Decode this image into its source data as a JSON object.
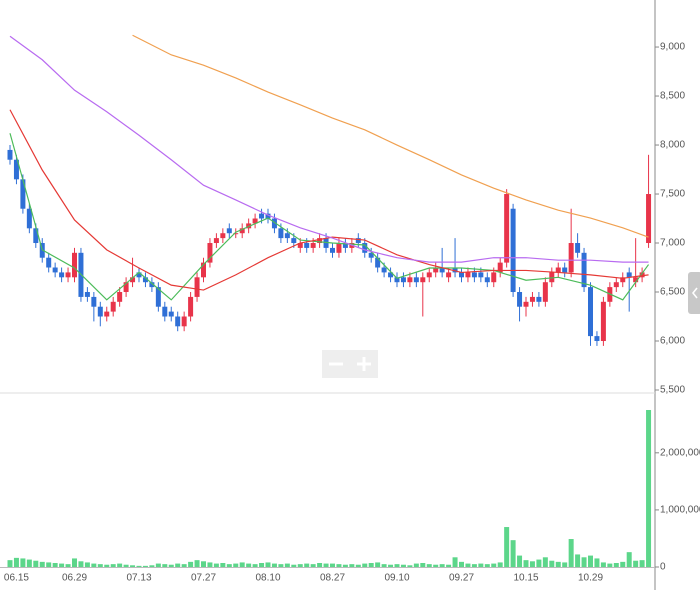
{
  "chart_data": {
    "type": "candlestick",
    "categories": [
      null,
      "06.15",
      null,
      null,
      null,
      null,
      null,
      null,
      null,
      null,
      "06.29",
      null,
      null,
      null,
      null,
      null,
      null,
      null,
      null,
      null,
      "07.13",
      null,
      null,
      null,
      null,
      null,
      null,
      null,
      null,
      null,
      "07.27",
      null,
      null,
      null,
      null,
      null,
      null,
      null,
      null,
      null,
      "08.10",
      null,
      null,
      null,
      null,
      null,
      null,
      null,
      null,
      null,
      "08.27",
      null,
      null,
      null,
      null,
      null,
      null,
      null,
      null,
      null,
      "09.10",
      null,
      null,
      null,
      null,
      null,
      null,
      null,
      null,
      null,
      "09.27",
      null,
      null,
      null,
      null,
      null,
      null,
      null,
      null,
      null,
      "10.15",
      null,
      null,
      null,
      null,
      null,
      null,
      null,
      null,
      null,
      "10.29",
      null,
      null,
      null,
      null,
      null,
      null,
      null,
      null,
      null
    ],
    "open": [
      7950,
      7850,
      7650,
      7350,
      7150,
      7000,
      6850,
      6750,
      6700,
      6650,
      6650,
      6900,
      6500,
      6450,
      6350,
      6250,
      6300,
      6400,
      6500,
      6600,
      6700,
      6650,
      6600,
      6550,
      6350,
      6300,
      6250,
      6150,
      6250,
      6450,
      6650,
      6800,
      7000,
      7050,
      7150,
      7100,
      7100,
      7150,
      7200,
      7300,
      7300,
      7250,
      7150,
      7100,
      7050,
      6950,
      7000,
      6950,
      7000,
      7050,
      6950,
      6900,
      7000,
      6950,
      7050,
      7000,
      6900,
      6850,
      6750,
      6700,
      6650,
      6650,
      6600,
      6650,
      6600,
      6650,
      6700,
      6750,
      6650,
      6750,
      6700,
      6650,
      6700,
      6700,
      6650,
      6600,
      6700,
      6800,
      7350,
      6500,
      6350,
      6400,
      6450,
      6400,
      6600,
      6700,
      6750,
      6700,
      7000,
      6900,
      6550,
      6050,
      6000,
      6400,
      6550,
      6600,
      6700,
      6600,
      6650,
      7000
    ],
    "high": [
      8000,
      7900,
      7700,
      7400,
      7200,
      7050,
      6900,
      6800,
      6750,
      6750,
      6950,
      6950,
      6550,
      6500,
      6400,
      6350,
      6450,
      6550,
      6650,
      6850,
      6750,
      6700,
      6650,
      6600,
      6400,
      6350,
      6300,
      6300,
      6500,
      6700,
      6850,
      7050,
      7100,
      7150,
      7200,
      7150,
      7200,
      7250,
      7300,
      7350,
      7350,
      7300,
      7200,
      7150,
      7100,
      7050,
      7050,
      7050,
      7100,
      7100,
      7000,
      7050,
      7050,
      7050,
      7100,
      7050,
      6950,
      6900,
      6800,
      6750,
      6700,
      6700,
      6700,
      6700,
      6700,
      6750,
      6800,
      6950,
      6750,
      7050,
      6750,
      6750,
      6750,
      6750,
      6700,
      6750,
      6850,
      7550,
      7400,
      6550,
      6450,
      6500,
      6500,
      6650,
      6750,
      6800,
      6800,
      7350,
      7100,
      6950,
      6600,
      6100,
      6450,
      6600,
      6650,
      6700,
      6750,
      7050,
      6750,
      7900
    ],
    "low": [
      7800,
      7600,
      7300,
      7100,
      6950,
      6800,
      6700,
      6650,
      6600,
      6600,
      6600,
      6400,
      6400,
      6200,
      6150,
      6200,
      6250,
      6350,
      6450,
      6550,
      6600,
      6550,
      6500,
      6300,
      6200,
      6200,
      6100,
      6100,
      6200,
      6400,
      6600,
      6750,
      6950,
      7000,
      7050,
      7050,
      7050,
      7100,
      7150,
      7200,
      7200,
      7100,
      7000,
      7000,
      6950,
      6900,
      6900,
      6900,
      6950,
      6900,
      6850,
      6850,
      6900,
      6900,
      6950,
      6850,
      6800,
      6700,
      6650,
      6600,
      6550,
      6550,
      6550,
      6550,
      6250,
      6600,
      6650,
      6650,
      6600,
      6650,
      6600,
      6600,
      6600,
      6600,
      6550,
      6550,
      6650,
      6750,
      6450,
      6200,
      6250,
      6350,
      6350,
      6350,
      6550,
      6650,
      6650,
      6650,
      6850,
      6500,
      5950,
      5950,
      5950,
      6350,
      6500,
      6550,
      6300,
      6550,
      6600,
      6950
    ],
    "close": [
      7850,
      7650,
      7350,
      7150,
      7000,
      6850,
      6750,
      6700,
      6650,
      6700,
      6900,
      6450,
      6450,
      6350,
      6250,
      6300,
      6400,
      6500,
      6600,
      6650,
      6650,
      6600,
      6550,
      6350,
      6250,
      6250,
      6150,
      6250,
      6450,
      6650,
      6800,
      7000,
      7050,
      7100,
      7100,
      7100,
      7150,
      7200,
      7250,
      7250,
      7250,
      7150,
      7050,
      7050,
      7000,
      7000,
      6950,
      7000,
      7050,
      6950,
      6900,
      7000,
      6950,
      7000,
      7000,
      6900,
      6850,
      6750,
      6700,
      6650,
      6600,
      6600,
      6650,
      6600,
      6650,
      6700,
      6750,
      6700,
      6700,
      6700,
      6650,
      6700,
      6650,
      6650,
      6600,
      6700,
      6800,
      7500,
      6500,
      6350,
      6400,
      6450,
      6400,
      6600,
      6700,
      6750,
      6700,
      7000,
      6900,
      6550,
      6050,
      6000,
      6400,
      6550,
      6600,
      6650,
      6650,
      6650,
      6700,
      7500
    ],
    "volume": [
      120000,
      160000,
      150000,
      130000,
      110000,
      90000,
      80000,
      70000,
      60000,
      50000,
      150000,
      100000,
      80000,
      60000,
      50000,
      40000,
      50000,
      60000,
      40000,
      30000,
      20000,
      20000,
      30000,
      60000,
      50000,
      40000,
      60000,
      50000,
      90000,
      120000,
      100000,
      80000,
      60000,
      70000,
      50000,
      60000,
      80000,
      60000,
      50000,
      70000,
      80000,
      60000,
      50000,
      60000,
      40000,
      50000,
      60000,
      50000,
      70000,
      60000,
      60000,
      50000,
      40000,
      50000,
      40000,
      60000,
      70000,
      80000,
      50000,
      40000,
      50000,
      40000,
      30000,
      60000,
      70000,
      50000,
      40000,
      50000,
      40000,
      170000,
      90000,
      60000,
      50000,
      60000,
      50000,
      60000,
      80000,
      700000,
      470000,
      200000,
      120000,
      100000,
      130000,
      170000,
      110000,
      90000,
      80000,
      490000,
      220000,
      170000,
      200000,
      150000,
      80000,
      60000,
      70000,
      90000,
      260000,
      110000,
      120000,
      2750000
    ],
    "up_color": "#e8344a",
    "down_color": "#2f6fd6",
    "volume_color": "#5cd68a",
    "series": [
      {
        "color": "#4cbb5a",
        "x": [
          0,
          5,
          10,
          15,
          20,
          25,
          30,
          35,
          40,
          45,
          50,
          55,
          60,
          65,
          70,
          75,
          80,
          85,
          90,
          95,
          99
        ],
        "values": [
          8120,
          6930,
          6745,
          6420,
          6700,
          6420,
          6780,
          7110,
          7255,
          7030,
          7000,
          6980,
          6640,
          6745,
          6745,
          6720,
          6620,
          6650,
          6570,
          6420,
          6780
        ]
      },
      {
        "color": "#e53935",
        "x": [
          0,
          5,
          10,
          15,
          20,
          25,
          30,
          35,
          40,
          45,
          50,
          55,
          60,
          65,
          70,
          75,
          80,
          85,
          90,
          95,
          99
        ],
        "values": [
          8360,
          7745,
          7235,
          6930,
          6745,
          6570,
          6520,
          6675,
          6850,
          7000,
          7060,
          7030,
          6880,
          6780,
          6700,
          6720,
          6720,
          6700,
          6675,
          6640,
          6675
        ]
      },
      {
        "color": "#b86bf0",
        "x": [
          0,
          5,
          10,
          15,
          20,
          25,
          30,
          35,
          40,
          45,
          50,
          55,
          60,
          65,
          70,
          75,
          80,
          85,
          90,
          95,
          99
        ],
        "values": [
          9110,
          8870,
          8560,
          8340,
          8100,
          7850,
          7590,
          7440,
          7285,
          7155,
          7050,
          6930,
          6850,
          6805,
          6805,
          6850,
          6850,
          6825,
          6825,
          6805,
          6805
        ]
      },
      {
        "color": "#f0a050",
        "x": [
          19,
          25,
          30,
          35,
          40,
          45,
          50,
          55,
          60,
          65,
          70,
          75,
          80,
          85,
          90,
          95,
          99
        ],
        "values": [
          9120,
          8920,
          8815,
          8685,
          8540,
          8410,
          8275,
          8155,
          8000,
          7850,
          7695,
          7560,
          7440,
          7335,
          7255,
          7155,
          7060
        ]
      }
    ],
    "ylim": [
      5500,
      9480
    ],
    "yticks": [
      {
        "value": 5500,
        "label": "5,500"
      },
      {
        "value": 6000,
        "label": "6,000"
      },
      {
        "value": 6500,
        "label": "6,500"
      },
      {
        "value": 7000,
        "label": "7,000"
      },
      {
        "value": 7500,
        "label": "7,500"
      },
      {
        "value": 8000,
        "label": "8,000"
      },
      {
        "value": 8500,
        "label": "8,500"
      },
      {
        "value": 9000,
        "label": "9,000"
      }
    ],
    "volume_ylim": [
      0,
      2960000
    ],
    "volume_yticks": [
      0,
      {
        "value": 1000000,
        "label": "1,000,000"
      },
      {
        "value": 2000000,
        "label": "2,000,000"
      }
    ]
  }
}
